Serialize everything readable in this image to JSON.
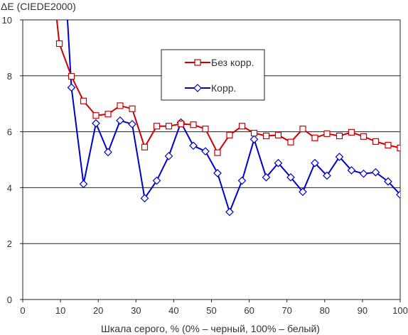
{
  "chart_data": {
    "type": "line",
    "ylabel": "ΔE (CIEDE2000)",
    "xlabel": "Шкала серого, % (0% – черный, 100% – белый)",
    "xlim": [
      0,
      100
    ],
    "ylim": [
      0,
      10
    ],
    "xticks": [
      "0",
      "10",
      "20",
      "30",
      "40",
      "50",
      "60",
      "70",
      "80",
      "90",
      "100"
    ],
    "yticks": [
      "0",
      "2",
      "4",
      "6",
      "8",
      "10"
    ],
    "grid": "horizontal",
    "legend_position": "top-center",
    "series": [
      {
        "name": "Без корр.",
        "color": "#cc0000",
        "marker": "square",
        "x": [
          6.5,
          9.7,
          12.9,
          16.1,
          19.4,
          22.6,
          25.8,
          29.0,
          32.3,
          35.5,
          38.7,
          41.9,
          45.2,
          48.4,
          51.6,
          54.8,
          58.1,
          61.3,
          64.5,
          67.7,
          71.0,
          74.2,
          77.4,
          80.6,
          83.9,
          87.1,
          90.3,
          93.5,
          96.8,
          100
        ],
        "y": [
          13.2,
          9.15,
          7.98,
          7.1,
          6.58,
          6.63,
          6.93,
          6.82,
          5.45,
          6.2,
          6.2,
          6.28,
          6.25,
          6.1,
          5.25,
          5.88,
          6.2,
          5.95,
          5.85,
          5.88,
          5.63,
          6.1,
          5.78,
          5.93,
          5.85,
          5.98,
          5.83,
          5.65,
          5.52,
          5.42
        ]
      },
      {
        "name": "Корр.",
        "color": "#0000cc",
        "marker": "diamond",
        "x": [
          9.7,
          12.9,
          16.1,
          19.4,
          22.6,
          25.8,
          29.0,
          32.3,
          35.5,
          38.7,
          41.9,
          45.2,
          48.4,
          51.6,
          54.8,
          58.1,
          61.3,
          64.5,
          67.7,
          71.0,
          74.2,
          77.4,
          80.6,
          83.9,
          87.1,
          90.3,
          93.5,
          96.8,
          100
        ],
        "y": [
          15.0,
          7.58,
          4.13,
          6.3,
          5.27,
          6.4,
          6.27,
          3.62,
          4.25,
          5.13,
          6.33,
          5.5,
          5.3,
          4.52,
          3.13,
          4.25,
          5.73,
          4.37,
          4.88,
          4.37,
          3.85,
          4.88,
          4.43,
          5.1,
          4.62,
          4.5,
          4.55,
          4.22,
          3.75
        ]
      }
    ]
  }
}
